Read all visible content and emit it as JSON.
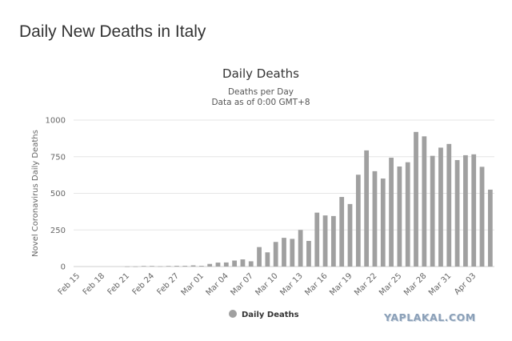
{
  "page": {
    "title": "Daily New Deaths in Italy"
  },
  "watermark": "YAPLAKAL.COM",
  "chart_data": {
    "type": "bar",
    "title": "Daily Deaths",
    "subtitle_lines": [
      "Deaths per Day",
      "Data as of 0:00 GMT+8"
    ],
    "ylabel": "Novel Coronavirus Daily Deaths",
    "xlabel": "",
    "ylim": [
      0,
      1000
    ],
    "yticks": [
      0,
      250,
      500,
      750,
      1000
    ],
    "grid": true,
    "bar_color": "#a0a0a0",
    "categories": [
      "Feb 15",
      "Feb 16",
      "Feb 17",
      "Feb 18",
      "Feb 19",
      "Feb 20",
      "Feb 21",
      "Feb 22",
      "Feb 23",
      "Feb 24",
      "Feb 25",
      "Feb 26",
      "Feb 27",
      "Feb 28",
      "Feb 29",
      "Mar 01",
      "Mar 02",
      "Mar 03",
      "Mar 04",
      "Mar 05",
      "Mar 06",
      "Mar 07",
      "Mar 08",
      "Mar 09",
      "Mar 10",
      "Mar 11",
      "Mar 12",
      "Mar 13",
      "Mar 14",
      "Mar 15",
      "Mar 16",
      "Mar 17",
      "Mar 18",
      "Mar 19",
      "Mar 20",
      "Mar 21",
      "Mar 22",
      "Mar 23",
      "Mar 24",
      "Mar 25",
      "Mar 26",
      "Mar 27",
      "Mar 28",
      "Mar 29",
      "Mar 30",
      "Mar 31",
      "Apr 01",
      "Apr 02",
      "Apr 03",
      "Apr 04",
      "Apr 05"
    ],
    "tick_labels": [
      "Feb 15",
      "Feb 18",
      "Feb 21",
      "Feb 24",
      "Feb 27",
      "Mar 01",
      "Mar 04",
      "Mar 07",
      "Mar 10",
      "Mar 13",
      "Mar 16",
      "Mar 19",
      "Mar 22",
      "Mar 25",
      "Mar 28",
      "Mar 31",
      "Apr 03"
    ],
    "series": [
      {
        "name": "Daily Deaths",
        "values": [
          0,
          0,
          0,
          0,
          0,
          0,
          1,
          1,
          4,
          4,
          2,
          4,
          5,
          5,
          8,
          5,
          18,
          27,
          28,
          41,
          49,
          36,
          133,
          97,
          168,
          196,
          189,
          250,
          175,
          368,
          349,
          345,
          475,
          427,
          627,
          793,
          651,
          601,
          743,
          683,
          712,
          919,
          889,
          756,
          812,
          837,
          727,
          760,
          766,
          681,
          525
        ]
      }
    ]
  }
}
